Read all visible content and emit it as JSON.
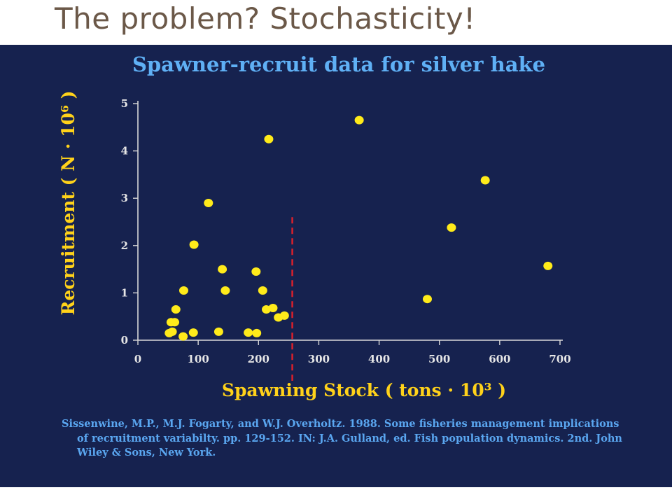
{
  "slide": {
    "title": "The problem? Stochasticity!"
  },
  "colors": {
    "background": "#16224f",
    "title": "#6b5848",
    "points": "#ffeb1a",
    "axis": "#d8d8d8",
    "chart_title": "#5fb0f5",
    "axis_label": "#ffd21a",
    "dashed_line": "#e0202a",
    "citation": "#5aa6f0"
  },
  "chart_data": {
    "type": "scatter",
    "title": "Spawner-recruit data for silver hake",
    "xlabel": "Spawning Stock ( tons · 10³ )",
    "ylabel": "Recruitment ( N · 10⁶ )",
    "xlim": [
      0,
      700
    ],
    "ylim": [
      0,
      5
    ],
    "xticks": [
      0,
      100,
      200,
      300,
      400,
      500,
      600,
      700
    ],
    "yticks": [
      0,
      1,
      2,
      3,
      4,
      5
    ],
    "grid": false,
    "legend": "none",
    "reference_line": {
      "x": 256,
      "style": "dashed",
      "y_from": 0,
      "y_to": 2.6
    },
    "points": [
      {
        "x": 52,
        "y": 0.15
      },
      {
        "x": 55,
        "y": 0.38
      },
      {
        "x": 57,
        "y": 0.18
      },
      {
        "x": 61,
        "y": 0.38
      },
      {
        "x": 63,
        "y": 0.65
      },
      {
        "x": 75,
        "y": 0.08
      },
      {
        "x": 76,
        "y": 1.05
      },
      {
        "x": 92,
        "y": 0.16
      },
      {
        "x": 93,
        "y": 2.02
      },
      {
        "x": 117,
        "y": 2.9
      },
      {
        "x": 134,
        "y": 0.18
      },
      {
        "x": 140,
        "y": 1.5
      },
      {
        "x": 145,
        "y": 1.05
      },
      {
        "x": 183,
        "y": 0.16
      },
      {
        "x": 196,
        "y": 1.45
      },
      {
        "x": 197,
        "y": 0.15
      },
      {
        "x": 207,
        "y": 1.05
      },
      {
        "x": 213,
        "y": 0.65
      },
      {
        "x": 217,
        "y": 4.25
      },
      {
        "x": 224,
        "y": 0.68
      },
      {
        "x": 233,
        "y": 0.48
      },
      {
        "x": 243,
        "y": 0.52
      },
      {
        "x": 367,
        "y": 4.65
      },
      {
        "x": 480,
        "y": 0.87
      },
      {
        "x": 520,
        "y": 2.38
      },
      {
        "x": 576,
        "y": 3.38
      },
      {
        "x": 680,
        "y": 1.57
      }
    ]
  },
  "citation": "Sissenwine, M.P., M.J. Fogarty, and W.J. Overholtz.  1988.  Some fisheries management implications of recruitment variabilty. pp. 129-152.  IN: J.A. Gulland, ed.  Fish population dynamics. 2nd.  John Wiley & Sons, New York."
}
